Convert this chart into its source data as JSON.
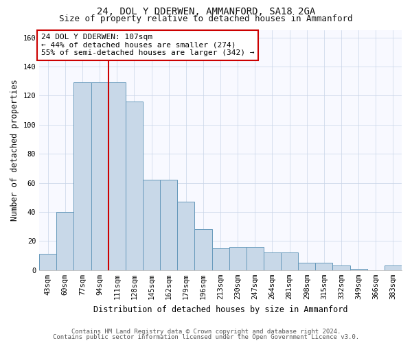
{
  "title1": "24, DOL Y DDERWEN, AMMANFORD, SA18 2GA",
  "title2": "Size of property relative to detached houses in Ammanford",
  "xlabel": "Distribution of detached houses by size in Ammanford",
  "ylabel": "Number of detached properties",
  "categories": [
    "43sqm",
    "60sqm",
    "77sqm",
    "94sqm",
    "111sqm",
    "128sqm",
    "145sqm",
    "162sqm",
    "179sqm",
    "196sqm",
    "213sqm",
    "230sqm",
    "247sqm",
    "264sqm",
    "281sqm",
    "298sqm",
    "315sqm",
    "332sqm",
    "349sqm",
    "366sqm",
    "383sqm"
  ],
  "values": [
    11,
    40,
    129,
    129,
    129,
    116,
    62,
    62,
    47,
    28,
    15,
    16,
    16,
    12,
    12,
    5,
    5,
    3,
    1,
    0,
    3
  ],
  "bar_color": "#c8d8e8",
  "bar_edge_color": "#6699bb",
  "vline_x": 3.5,
  "vline_color": "#cc0000",
  "annotation_title": "24 DOL Y DDERWEN: 107sqm",
  "annotation_line1": "← 44% of detached houses are smaller (274)",
  "annotation_line2": "55% of semi-detached houses are larger (342) →",
  "annotation_box_color": "#ffffff",
  "annotation_box_edge": "#cc0000",
  "ylim": [
    0,
    165
  ],
  "yticks": [
    0,
    20,
    40,
    60,
    80,
    100,
    120,
    140,
    160
  ],
  "footer1": "Contains HM Land Registry data © Crown copyright and database right 2024.",
  "footer2": "Contains public sector information licensed under the Open Government Licence v3.0.",
  "title_fontsize": 10,
  "subtitle_fontsize": 9,
  "axis_label_fontsize": 8.5,
  "tick_fontsize": 7.5,
  "annotation_fontsize": 8,
  "footer_fontsize": 6.5
}
